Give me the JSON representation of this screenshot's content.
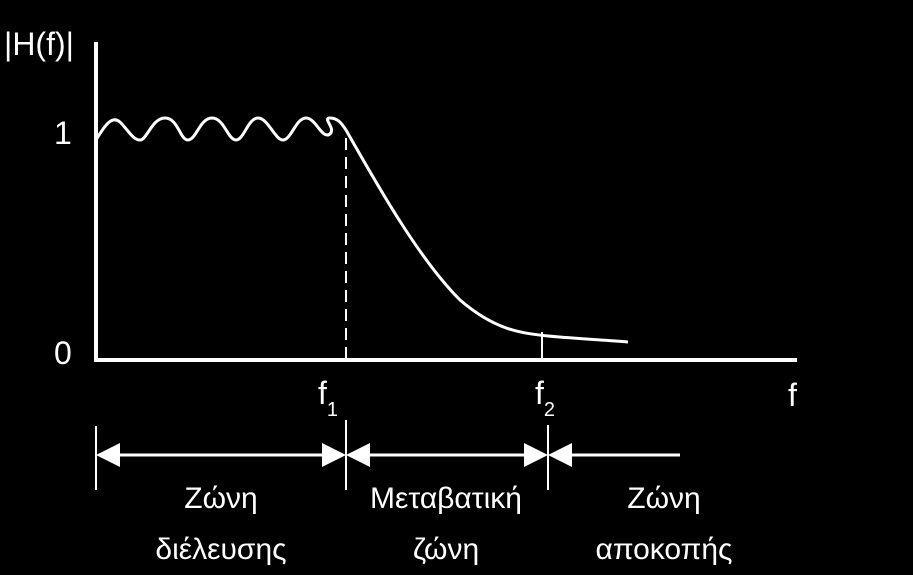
{
  "diagram": {
    "y_axis_label": "|H(f)|",
    "x_axis_label": "f",
    "y_tick_one": "1",
    "y_tick_zero": "0",
    "f1": {
      "base": "f",
      "sub": "1"
    },
    "f2": {
      "base": "f",
      "sub": "2"
    },
    "zones": {
      "passband": {
        "line1": "Ζώνη",
        "line2": "διέλευσης"
      },
      "transition": {
        "line1": "Μεταβατική",
        "line2": "ζώνη"
      },
      "stopband": {
        "line1": "Ζώνη",
        "line2": "αποκοπής"
      }
    },
    "colors": {
      "background": "#000000",
      "foreground": "#ffffff"
    }
  }
}
